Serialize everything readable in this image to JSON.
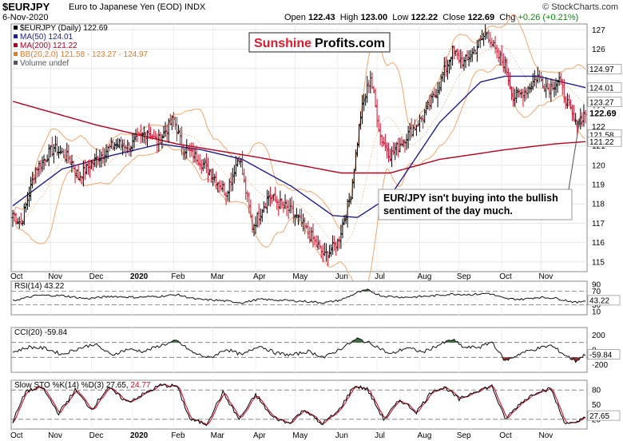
{
  "header": {
    "symbol": "$EURJPY",
    "name": "Euro to Japanese Yen (EOD)",
    "exchange": "INDX",
    "date": "6-Nov-2020",
    "open_label": "Open",
    "open": "122.43",
    "high_label": "High",
    "high": "123.00",
    "low_label": "Low",
    "low": "122.22",
    "close_label": "Close",
    "close": "122.69",
    "chg_label": "Chg",
    "chg": "+0.26 (+0.21%)",
    "credit": "© StockCharts.com"
  },
  "watermark": {
    "part1": "Sunshine",
    "part2": "Profits.com"
  },
  "legend": [
    {
      "text": "$EURJPY (Daily) 122.69",
      "color": "#000000"
    },
    {
      "text": "MA(50) 124.01",
      "color": "#1f1f8f"
    },
    {
      "text": "MA(200) 121.22",
      "color": "#b0001e"
    },
    {
      "text": "BB(20,2.0) 121.58 - 123.27 - 124.97",
      "color": "#e07b2e"
    },
    {
      "text": "Volume undef",
      "color": "#555555"
    }
  ],
  "annotation": "EUR/JPY isn't buying into the bullish sentiment of the day much.",
  "colors": {
    "up": "#000000",
    "down": "#d0102a",
    "ma50": "#1f1f8f",
    "ma200": "#b0001e",
    "bb": "#f2a66b",
    "fillGreen": "#3f6e3f",
    "fillRed": "#8a3030"
  },
  "chart_data": [
    {
      "type": "ohlc",
      "title": "$EURJPY (Daily) 122.69",
      "x_axis": [
        "Oct",
        "Nov",
        "Dec",
        "2020",
        "Feb",
        "Mar",
        "Apr",
        "May",
        "Jun",
        "Jul",
        "Aug",
        "Sep",
        "Oct",
        "Nov"
      ],
      "y_ticks": [
        115,
        116,
        117,
        118,
        119,
        120,
        121,
        122,
        123,
        124,
        125,
        126,
        127
      ],
      "ylim": [
        114.5,
        127.3
      ],
      "price_labels": [
        {
          "value": 124.97,
          "label": "124.97",
          "kind": "bb"
        },
        {
          "value": 124.01,
          "label": "124.01",
          "kind": "ma50"
        },
        {
          "value": 123.27,
          "label": "123.27",
          "kind": "bb"
        },
        {
          "value": 122.69,
          "label": "122.69",
          "kind": "close"
        },
        {
          "value": 121.58,
          "label": "121.58",
          "kind": "bb"
        },
        {
          "value": 121.22,
          "label": "121.22",
          "kind": "ma200"
        }
      ],
      "anchors": [
        [
          0,
          117.5
        ],
        [
          5,
          117.0
        ],
        [
          14,
          119.8
        ],
        [
          25,
          120.9
        ],
        [
          35,
          120.3
        ],
        [
          40,
          119.4
        ],
        [
          52,
          120.4
        ],
        [
          62,
          121.1
        ],
        [
          72,
          121.0
        ],
        [
          82,
          121.8
        ],
        [
          88,
          121.2
        ],
        [
          98,
          122.4
        ],
        [
          103,
          121.0
        ],
        [
          112,
          120.4
        ],
        [
          120,
          119.7
        ],
        [
          130,
          118.6
        ],
        [
          138,
          120.5
        ],
        [
          146,
          116.8
        ],
        [
          156,
          118.4
        ],
        [
          165,
          117.9
        ],
        [
          172,
          117.4
        ],
        [
          182,
          116.3
        ],
        [
          190,
          115.3
        ],
        [
          198,
          116.0
        ],
        [
          206,
          118.5
        ],
        [
          212,
          122.6
        ],
        [
          218,
          124.6
        ],
        [
          224,
          121.5
        ],
        [
          230,
          120.5
        ],
        [
          240,
          121.5
        ],
        [
          250,
          122.5
        ],
        [
          258,
          123.8
        ],
        [
          268,
          125.9
        ],
        [
          275,
          125.3
        ],
        [
          282,
          126.0
        ],
        [
          289,
          126.9
        ],
        [
          295,
          125.7
        ],
        [
          300,
          125.2
        ],
        [
          305,
          123.5
        ],
        [
          312,
          123.8
        ],
        [
          320,
          124.6
        ],
        [
          326,
          124.0
        ],
        [
          333,
          124.4
        ],
        [
          338,
          123.2
        ],
        [
          343,
          122.1
        ],
        [
          349,
          122.7
        ]
      ],
      "ma50_anchors": [
        [
          0,
          117.9
        ],
        [
          30,
          119.8
        ],
        [
          60,
          120.5
        ],
        [
          90,
          121.1
        ],
        [
          115,
          120.8
        ],
        [
          140,
          120.3
        ],
        [
          170,
          118.9
        ],
        [
          195,
          117.4
        ],
        [
          210,
          117.3
        ],
        [
          230,
          118.4
        ],
        [
          260,
          122.2
        ],
        [
          285,
          124.3
        ],
        [
          300,
          124.6
        ],
        [
          320,
          124.6
        ],
        [
          349,
          124.01
        ]
      ],
      "ma200_anchors": [
        [
          0,
          123.3
        ],
        [
          50,
          122.1
        ],
        [
          100,
          121.1
        ],
        [
          150,
          120.4
        ],
        [
          200,
          119.6
        ],
        [
          230,
          119.6
        ],
        [
          260,
          120.3
        ],
        [
          300,
          120.8
        ],
        [
          330,
          121.1
        ],
        [
          349,
          121.22
        ]
      ]
    },
    {
      "type": "line",
      "title": "RSI(14) 43.22",
      "name": "RSI(14)",
      "last": 43.22,
      "levels": [
        10,
        30,
        50,
        70,
        90
      ],
      "ylim": [
        0,
        100
      ],
      "ref_lines": [
        30,
        70
      ],
      "anchors": [
        [
          0,
          42
        ],
        [
          15,
          58
        ],
        [
          30,
          57
        ],
        [
          45,
          48
        ],
        [
          60,
          55
        ],
        [
          75,
          52
        ],
        [
          90,
          55
        ],
        [
          100,
          60
        ],
        [
          112,
          46
        ],
        [
          125,
          43
        ],
        [
          140,
          36
        ],
        [
          150,
          46
        ],
        [
          165,
          43
        ],
        [
          178,
          40
        ],
        [
          190,
          36
        ],
        [
          200,
          44
        ],
        [
          210,
          66
        ],
        [
          216,
          74
        ],
        [
          225,
          56
        ],
        [
          240,
          52
        ],
        [
          255,
          56
        ],
        [
          268,
          62
        ],
        [
          280,
          60
        ],
        [
          290,
          64
        ],
        [
          300,
          48
        ],
        [
          310,
          46
        ],
        [
          320,
          52
        ],
        [
          330,
          50
        ],
        [
          338,
          42
        ],
        [
          344,
          36
        ],
        [
          349,
          43.22
        ]
      ]
    },
    {
      "type": "line",
      "title": "CCI(20) -59.84",
      "name": "CCI(20)",
      "last": -59.84,
      "levels": [
        -200,
        0,
        200
      ],
      "ylim": [
        -300,
        300
      ],
      "ref_lines": [
        -100,
        100
      ],
      "anchors": [
        [
          0,
          -30
        ],
        [
          10,
          40
        ],
        [
          20,
          20
        ],
        [
          30,
          -60
        ],
        [
          40,
          20
        ],
        [
          50,
          80
        ],
        [
          60,
          -70
        ],
        [
          70,
          10
        ],
        [
          80,
          -20
        ],
        [
          90,
          60
        ],
        [
          100,
          120
        ],
        [
          110,
          -40
        ],
        [
          120,
          -110
        ],
        [
          130,
          10
        ],
        [
          140,
          -70
        ],
        [
          150,
          60
        ],
        [
          160,
          -40
        ],
        [
          170,
          -70
        ],
        [
          180,
          -20
        ],
        [
          190,
          -100
        ],
        [
          200,
          20
        ],
        [
          210,
          150
        ],
        [
          220,
          70
        ],
        [
          230,
          -60
        ],
        [
          240,
          30
        ],
        [
          250,
          -30
        ],
        [
          260,
          70
        ],
        [
          268,
          140
        ],
        [
          275,
          30
        ],
        [
          285,
          40
        ],
        [
          292,
          110
        ],
        [
          300,
          -150
        ],
        [
          310,
          -40
        ],
        [
          320,
          20
        ],
        [
          328,
          60
        ],
        [
          336,
          -60
        ],
        [
          343,
          -150
        ],
        [
          349,
          -59.84
        ]
      ]
    },
    {
      "type": "line",
      "title": "Slow STO %K(14) %D(3) 27.65, 24.77",
      "series": [
        {
          "name": "%K(14)",
          "last": 27.65,
          "color": "#000000"
        },
        {
          "name": "%D(3)",
          "last": 24.77,
          "color": "#d0102a"
        }
      ],
      "levels": [
        20,
        50,
        80
      ],
      "ylim": [
        0,
        100
      ],
      "ref_lines": [
        20,
        80
      ],
      "anchors": [
        [
          0,
          15
        ],
        [
          8,
          78
        ],
        [
          18,
          85
        ],
        [
          28,
          32
        ],
        [
          38,
          80
        ],
        [
          48,
          40
        ],
        [
          58,
          85
        ],
        [
          70,
          55
        ],
        [
          80,
          72
        ],
        [
          90,
          90
        ],
        [
          100,
          88
        ],
        [
          108,
          20
        ],
        [
          118,
          10
        ],
        [
          128,
          75
        ],
        [
          138,
          20
        ],
        [
          148,
          70
        ],
        [
          158,
          25
        ],
        [
          168,
          12
        ],
        [
          178,
          40
        ],
        [
          188,
          10
        ],
        [
          198,
          35
        ],
        [
          208,
          88
        ],
        [
          216,
          82
        ],
        [
          226,
          20
        ],
        [
          236,
          60
        ],
        [
          246,
          35
        ],
        [
          256,
          80
        ],
        [
          264,
          85
        ],
        [
          272,
          60
        ],
        [
          282,
          78
        ],
        [
          292,
          88
        ],
        [
          300,
          20
        ],
        [
          310,
          55
        ],
        [
          320,
          78
        ],
        [
          328,
          82
        ],
        [
          336,
          15
        ],
        [
          343,
          10
        ],
        [
          349,
          27.65
        ]
      ]
    }
  ]
}
